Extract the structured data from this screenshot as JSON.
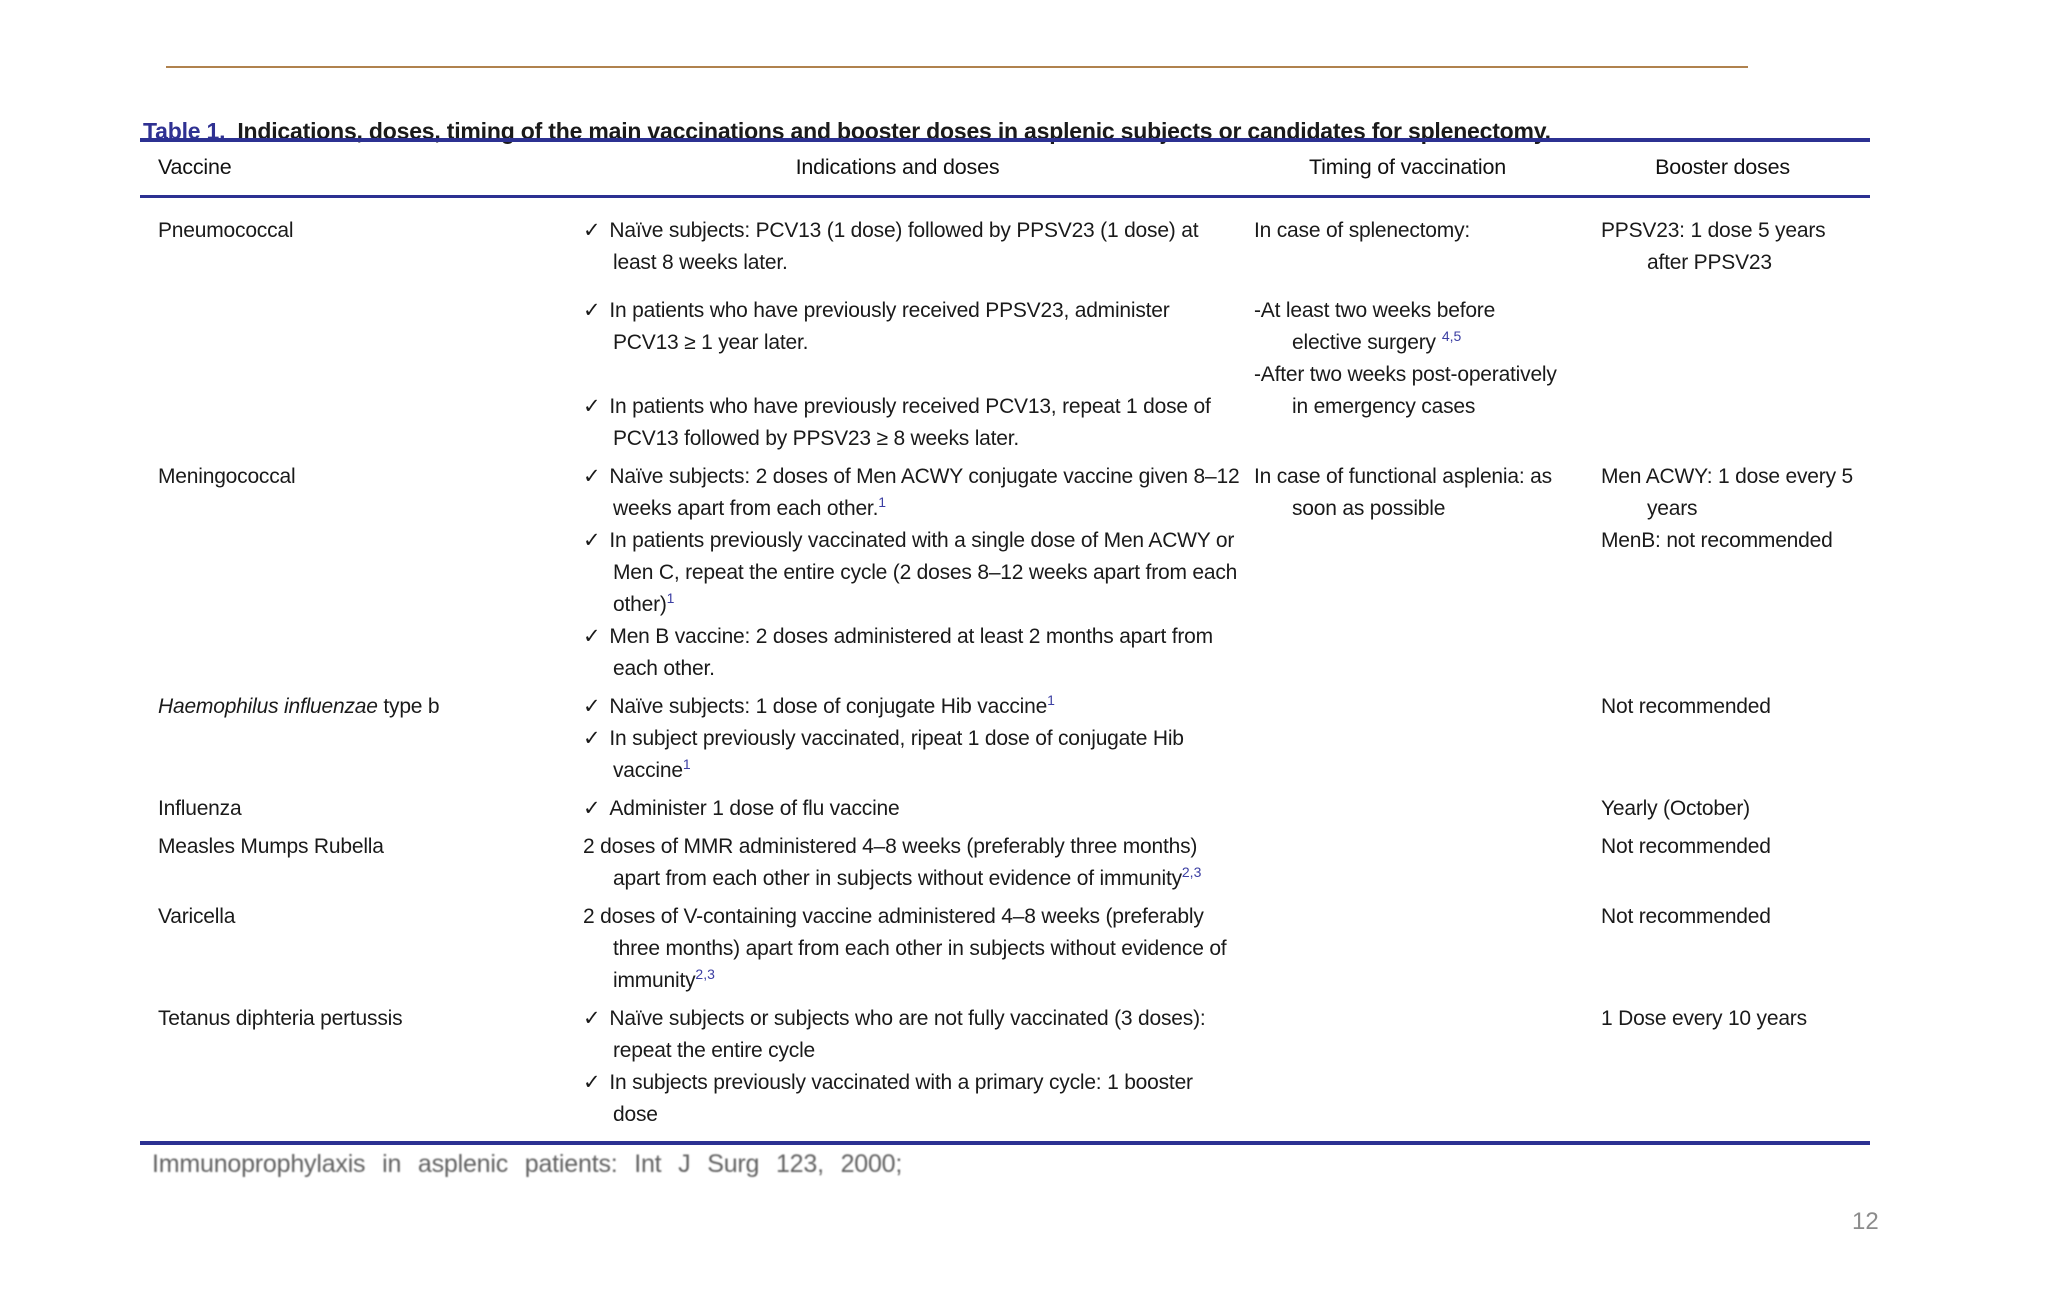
{
  "page": {
    "number": "12"
  },
  "colors": {
    "table_rule_navy": "#2c3192",
    "title_label_blue": "#2f3192",
    "top_rule_tan": "#b0824e",
    "superscript_blue": "#3b3ea2",
    "page_number_gray": "#8c8c8c"
  },
  "table": {
    "label": "Table 1.",
    "caption": "Indications, doses, timing of the main vaccinations and booster doses in asplenic subjects or candidates for splenectomy.",
    "check_glyph": "✓",
    "columns": [
      "Vaccine",
      "Indications and doses",
      "Timing of vaccination",
      "Booster doses"
    ],
    "rows": [
      {
        "vaccine": [
          {
            "t": "Pneumococcal"
          }
        ],
        "indications": [
          {
            "check": true,
            "t": "Naïve subjects: PCV13 (1 dose) followed by PPSV23 (1 dose) at least 8 weeks later."
          },
          {
            "check": true,
            "t": "In patients who have previously received PPSV23, administer PCV13 ≥ 1 year later.",
            "gap": 1
          },
          {
            "check": true,
            "t": "In patients who have previously received PCV13, repeat 1 dose of PCV13 followed by PPSV23 ≥ 8 weeks later.",
            "gap": 2
          }
        ],
        "timing": [
          {
            "t": "In case of splenectomy:"
          },
          {
            "t": "-At least two weeks before elective surgery",
            "sup": "4,5",
            "sup_gap": true,
            "gap": 3
          },
          {
            "t": "-After two weeks post-operatively in emergency cases"
          }
        ],
        "booster": [
          {
            "t": "PPSV23: 1 dose 5 years after PPSV23"
          }
        ]
      },
      {
        "vaccine": [
          {
            "t": "Meningococcal"
          }
        ],
        "indications": [
          {
            "check": true,
            "t": "Naïve subjects: 2 doses of Men ACWY conjugate vaccine given 8–12 weeks apart from each other.",
            "sup": "1"
          },
          {
            "check": true,
            "t": "In patients previously vaccinated with a single dose of Men ACWY or Men C, repeat the entire cycle (2 doses 8–12 weeks apart from each other)",
            "sup": "1"
          },
          {
            "check": true,
            "t": "Men B vaccine: 2 doses administered at least 2 months apart from each other."
          }
        ],
        "timing": [
          {
            "t": "In case of functional asplenia: as soon as possible"
          }
        ],
        "booster": [
          {
            "t": "Men ACWY: 1 dose every 5 years"
          },
          {
            "t": "MenB: not recommended"
          }
        ]
      },
      {
        "vaccine": [
          {
            "t": "Haemophilus influenzae",
            "i": true
          },
          {
            "t": " type b"
          }
        ],
        "indications": [
          {
            "check": true,
            "t": "Naïve subjects: 1 dose of conjugate Hib vaccine",
            "sup": "1"
          },
          {
            "check": true,
            "t": "In subject previously vaccinated, ripeat 1 dose of conjugate Hib vaccine",
            "sup": "1"
          }
        ],
        "timing": [],
        "booster": [
          {
            "t": "Not recommended"
          }
        ]
      },
      {
        "vaccine": [
          {
            "t": "Influenza"
          }
        ],
        "indications": [
          {
            "check": true,
            "t": "Administer 1 dose of flu vaccine"
          }
        ],
        "timing": [],
        "booster": [
          {
            "t": "Yearly (October)"
          }
        ]
      },
      {
        "vaccine": [
          {
            "t": "Measles Mumps Rubella"
          }
        ],
        "indications": [
          {
            "t": "2 doses of MMR administered 4–8 weeks (preferably three months) apart from each other in subjects without evidence of immunity",
            "sup": "2,3"
          }
        ],
        "timing": [],
        "booster": [
          {
            "t": "Not recommended"
          }
        ]
      },
      {
        "vaccine": [
          {
            "t": "Varicella"
          }
        ],
        "indications": [
          {
            "t": "2 doses of V-containing vaccine administered 4–8 weeks (preferably three months) apart from each other in subjects without evidence of immunity",
            "sup": "2,3"
          }
        ],
        "timing": [],
        "booster": [
          {
            "t": "Not recommended"
          }
        ]
      },
      {
        "vaccine": [
          {
            "t": "Tetanus diphteria pertussis"
          }
        ],
        "indications": [
          {
            "check": true,
            "t": "Naïve subjects or subjects who are not fully vaccinated (3 doses): repeat the entire cycle"
          },
          {
            "check": true,
            "t": "In subjects previously vaccinated with a primary cycle: 1 booster dose"
          }
        ],
        "timing": [],
        "booster": [
          {
            "t": "1 Dose every 10 years"
          }
        ]
      }
    ]
  },
  "footnote": {
    "clipped_line": "Immunoprophylaxis in asplenic patients: Int J Surg 123, 2000;"
  }
}
